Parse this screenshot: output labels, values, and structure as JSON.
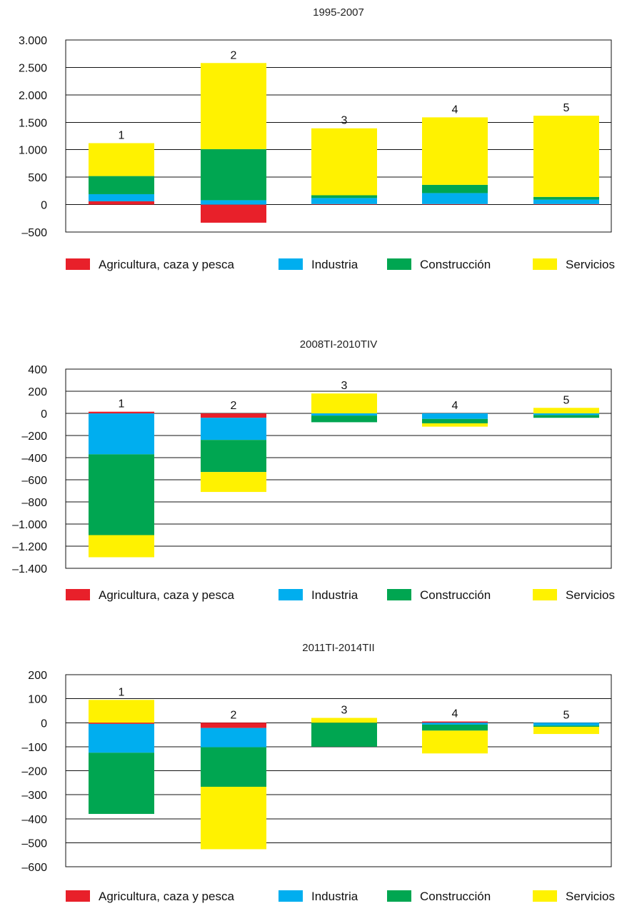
{
  "legend": [
    {
      "key": "agri",
      "label": "Agricultura, caza y pesca",
      "color": "#e8202a"
    },
    {
      "key": "ind",
      "label": "Industria",
      "color": "#00aeef"
    },
    {
      "key": "cons",
      "label": "Construcción",
      "color": "#00a651"
    },
    {
      "key": "serv",
      "label": "Servicios",
      "color": "#fff200"
    }
  ],
  "chart_data": [
    {
      "type": "bar",
      "stacked": true,
      "title": "1995-2007",
      "categories": [
        "1",
        "2",
        "3",
        "4",
        "5"
      ],
      "ylim": [
        -500,
        3000
      ],
      "yticks": [
        -500,
        0,
        500,
        1000,
        1500,
        2000,
        2500,
        3000
      ],
      "ytick_labels": [
        "–500",
        "0",
        "500",
        "1.000",
        "1.500",
        "2.000",
        "2.500",
        "3.000"
      ],
      "grid": true,
      "legend_position": "bottom",
      "series": [
        {
          "name": "Agricultura, caza y pesca",
          "values": [
            60,
            -330,
            10,
            10,
            10
          ]
        },
        {
          "name": "Industria",
          "values": [
            130,
            80,
            110,
            200,
            80
          ]
        },
        {
          "name": "Construcción",
          "values": [
            330,
            930,
            50,
            150,
            50
          ]
        },
        {
          "name": "Servicios",
          "values": [
            600,
            1570,
            1220,
            1230,
            1480
          ]
        }
      ]
    },
    {
      "type": "bar",
      "stacked": true,
      "title": "2008TI-2010TIV",
      "categories": [
        "1",
        "2",
        "3",
        "4",
        "5"
      ],
      "ylim": [
        -1400,
        400
      ],
      "yticks": [
        -1400,
        -1200,
        -1000,
        -800,
        -600,
        -400,
        -200,
        0,
        200,
        400
      ],
      "ytick_labels": [
        "–1.400",
        "–1.200",
        "–1.000",
        "–800",
        "–600",
        "–400",
        "–200",
        "0",
        "200",
        "400"
      ],
      "grid": true,
      "legend_position": "bottom",
      "series": [
        {
          "name": "Agricultura, caza y pesca",
          "values": [
            15,
            -40,
            0,
            0,
            0
          ]
        },
        {
          "name": "Industria",
          "values": [
            -370,
            -200,
            -20,
            -50,
            -15
          ]
        },
        {
          "name": "Construcción",
          "values": [
            -730,
            -290,
            -60,
            -40,
            -25
          ]
        },
        {
          "name": "Servicios",
          "values": [
            -200,
            -180,
            180,
            -30,
            50
          ]
        }
      ]
    },
    {
      "type": "bar",
      "stacked": true,
      "title": "2011TI-2014TII",
      "categories": [
        "1",
        "2",
        "3",
        "4",
        "5"
      ],
      "ylim": [
        -600,
        200
      ],
      "yticks": [
        -600,
        -500,
        -400,
        -300,
        -200,
        -100,
        0,
        100,
        200
      ],
      "ytick_labels": [
        "–600",
        "–500",
        "–400",
        "–300",
        "–200",
        "–100",
        "0",
        "100",
        "200"
      ],
      "grid": true,
      "legend_position": "bottom",
      "series": [
        {
          "name": "Agricultura, caza y pesca",
          "values": [
            -5,
            -22,
            0,
            5,
            0
          ]
        },
        {
          "name": "Industria",
          "values": [
            -120,
            -80,
            0,
            -8,
            -12
          ]
        },
        {
          "name": "Construcción",
          "values": [
            -255,
            -165,
            -100,
            -25,
            -5
          ]
        },
        {
          "name": "Servicios",
          "values": [
            95,
            -260,
            20,
            -95,
            -30
          ]
        }
      ]
    }
  ]
}
